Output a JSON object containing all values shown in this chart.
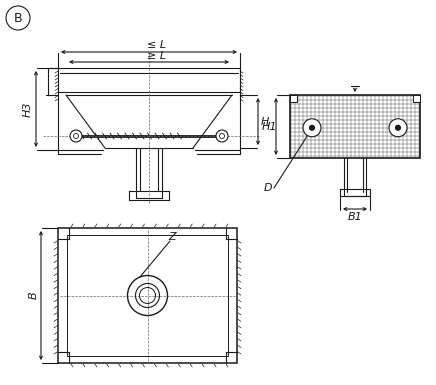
{
  "background_color": "#ffffff",
  "line_color": "#1a1a1a",
  "fig_width": 4.36,
  "fig_height": 3.85,
  "dpi": 100,
  "labels": {
    "B_circle": "B",
    "leL": "≤ L",
    "geL": "≥ L",
    "H3": "H3",
    "H": "H",
    "H1": "H1",
    "D": "D",
    "B1": "B1",
    "Z": "Z",
    "B_dim": "B"
  }
}
